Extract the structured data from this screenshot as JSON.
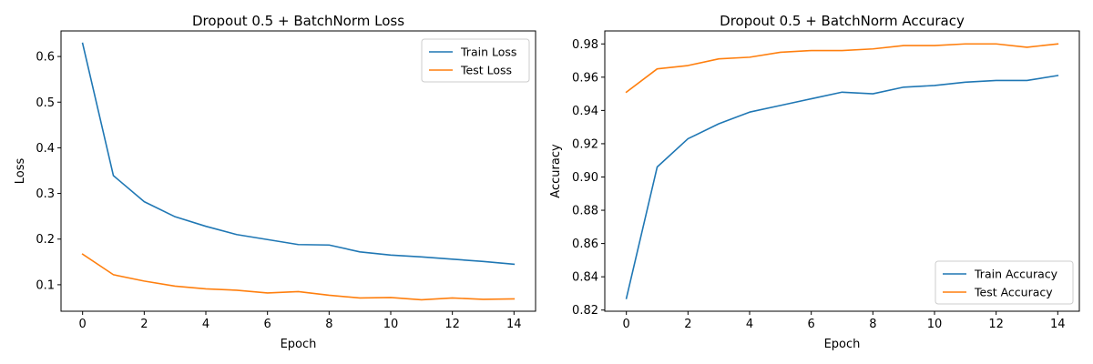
{
  "chart_data": [
    {
      "type": "line",
      "title": "Dropout 0.5 + BatchNorm Loss",
      "xlabel": "Epoch",
      "ylabel": "Loss",
      "x": [
        0,
        1,
        2,
        3,
        4,
        5,
        6,
        7,
        8,
        9,
        10,
        11,
        12,
        13,
        14
      ],
      "xlim": [
        -0.7,
        14.7
      ],
      "ylim": [
        0.042,
        0.656
      ],
      "xticks": [
        0,
        2,
        4,
        6,
        8,
        10,
        12,
        14
      ],
      "xtick_labels": [
        "0",
        "2",
        "4",
        "6",
        "8",
        "10",
        "12",
        "14"
      ],
      "yticks": [
        0.1,
        0.2,
        0.3,
        0.4,
        0.5,
        0.6
      ],
      "ytick_labels": [
        "0.1",
        "0.2",
        "0.3",
        "0.4",
        "0.5",
        "0.6"
      ],
      "legend_position": "upper right",
      "grid": false,
      "series": [
        {
          "name": "Train Loss",
          "color": "#1f77b4",
          "values": [
            0.629,
            0.339,
            0.282,
            0.249,
            0.228,
            0.21,
            0.199,
            0.188,
            0.187,
            0.172,
            0.165,
            0.161,
            0.156,
            0.151,
            0.145
          ]
        },
        {
          "name": "Test Loss",
          "color": "#ff7f0e",
          "values": [
            0.167,
            0.122,
            0.108,
            0.097,
            0.091,
            0.088,
            0.082,
            0.085,
            0.077,
            0.071,
            0.072,
            0.067,
            0.071,
            0.068,
            0.069
          ]
        }
      ]
    },
    {
      "type": "line",
      "title": "Dropout 0.5 + BatchNorm Accuracy",
      "xlabel": "Epoch",
      "ylabel": "Accuracy",
      "x": [
        0,
        1,
        2,
        3,
        4,
        5,
        6,
        7,
        8,
        9,
        10,
        11,
        12,
        13,
        14
      ],
      "xlim": [
        -0.7,
        14.7
      ],
      "ylim": [
        0.8193,
        0.9878
      ],
      "xticks": [
        0,
        2,
        4,
        6,
        8,
        10,
        12,
        14
      ],
      "xtick_labels": [
        "0",
        "2",
        "4",
        "6",
        "8",
        "10",
        "12",
        "14"
      ],
      "yticks": [
        0.82,
        0.84,
        0.86,
        0.88,
        0.9,
        0.92,
        0.94,
        0.96,
        0.98
      ],
      "ytick_labels": [
        "0.82",
        "0.84",
        "0.86",
        "0.88",
        "0.90",
        "0.92",
        "0.94",
        "0.96",
        "0.98"
      ],
      "legend_position": "lower right",
      "grid": false,
      "series": [
        {
          "name": "Train Accuracy",
          "color": "#1f77b4",
          "values": [
            0.827,
            0.906,
            0.923,
            0.932,
            0.939,
            0.943,
            0.947,
            0.951,
            0.95,
            0.954,
            0.955,
            0.957,
            0.958,
            0.958,
            0.961
          ]
        },
        {
          "name": "Test Accuracy",
          "color": "#ff7f0e",
          "values": [
            0.951,
            0.965,
            0.967,
            0.971,
            0.972,
            0.975,
            0.976,
            0.976,
            0.977,
            0.979,
            0.979,
            0.98,
            0.98,
            0.978,
            0.98
          ]
        }
      ]
    }
  ]
}
